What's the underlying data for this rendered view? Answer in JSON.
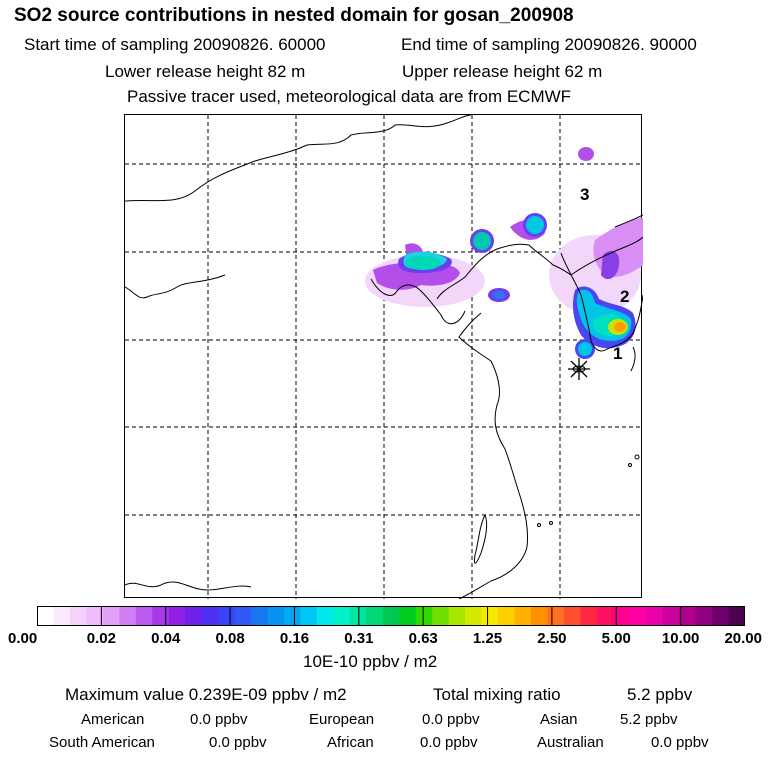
{
  "header": {
    "title": "SO2 source contributions in nested domain for gosan_200908",
    "start_time": "Start time of sampling 20090826. 60000",
    "end_time": "End time of sampling 20090826. 90000",
    "lower_release": "Lower release height   82 m",
    "upper_release": "Upper release height   62 m",
    "tracer_info": "Passive tracer used, meteorological data are from ECMWF"
  },
  "map": {
    "site_labels": [
      "3",
      "2",
      "1"
    ],
    "receptor_marker": "gosan-receptor-star"
  },
  "colorbar": {
    "tick_labels": [
      "0.00",
      "0.02",
      "0.04",
      "0.08",
      "0.16",
      "0.31",
      "0.63",
      "1.25",
      "2.50",
      "5.00",
      "10.00",
      "20.00"
    ],
    "colors": [
      "#ffffff",
      "#fbe8fd",
      "#f5d2fb",
      "#eebcf9",
      "#e0a0f5",
      "#d07ef2",
      "#bb5cee",
      "#a73ae8",
      "#8f1fe6",
      "#7020ea",
      "#5030f0",
      "#3844f6",
      "#3058f6",
      "#1878f2",
      "#0a92f0",
      "#00aaf2",
      "#00c8f4",
      "#00e8ec",
      "#00f0c8",
      "#00e6a0",
      "#00d878",
      "#00c850",
      "#00cc20",
      "#30d800",
      "#70e000",
      "#a8e600",
      "#d4ea00",
      "#f4e800",
      "#ffd000",
      "#ffb000",
      "#ff9000",
      "#ff7020",
      "#ff5030",
      "#ff2840",
      "#ff1060",
      "#ff0090",
      "#ff00a8",
      "#e800a8",
      "#cc00a0",
      "#b00090",
      "#900080",
      "#700070",
      "#500050"
    ],
    "unit": "10E-10 ppbv / m2"
  },
  "summary": {
    "max_value_label": "Maximum value  0.239E-09 ppbv / m2",
    "total_mixing_label": "Total mixing ratio",
    "total_mixing_value": "5.2 ppbv",
    "regions": [
      {
        "name": "American",
        "value": "0.0 ppbv"
      },
      {
        "name": "European",
        "value": "0.0 ppbv"
      },
      {
        "name": "Asian",
        "value": "5.2 ppbv"
      },
      {
        "name": "South American",
        "value": "0.0 ppbv"
      },
      {
        "name": "African",
        "value": "0.0 ppbv"
      },
      {
        "name": "Australian",
        "value": "0.0 ppbv"
      }
    ]
  }
}
